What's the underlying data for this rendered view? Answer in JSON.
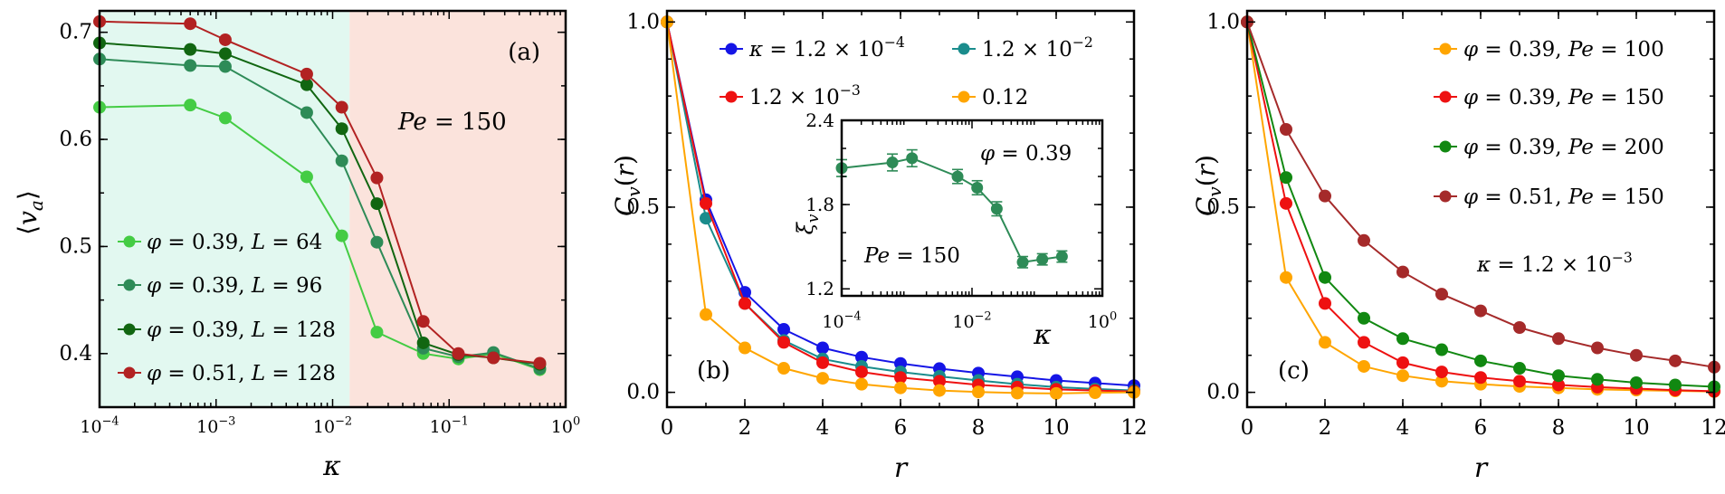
{
  "chart_data": [
    {
      "type": "line",
      "panel_label": "(a)",
      "annotation": "Pe = 150",
      "xlabel": "κ",
      "ylabel": "⟨v_a⟩",
      "xscale": "log",
      "xlim": [
        0.0001,
        1
      ],
      "ylim": [
        0.35,
        0.72
      ],
      "x_ticks": [
        "10⁻⁴",
        "10⁻³",
        "10⁻²",
        "10⁻¹",
        "10⁰"
      ],
      "y_ticks": [
        "0.4",
        "0.5",
        "0.6",
        "0.7"
      ],
      "shaded_regions": [
        {
          "x_from": 0.0001,
          "x_to": 0.014,
          "color": "#e2f8f0"
        },
        {
          "x_from": 0.014,
          "x_to": 1,
          "color": "#fbe3dc"
        }
      ],
      "legend_position": "lower-left",
      "series": [
        {
          "name": "φ = 0.39, L = 64",
          "color": "#44cc44",
          "x": [
            0.0001,
            0.0006,
            0.0012,
            0.006,
            0.012,
            0.024,
            0.06,
            0.12,
            0.24,
            0.6
          ],
          "y": [
            0.63,
            0.632,
            0.62,
            0.565,
            0.51,
            0.42,
            0.4,
            0.395,
            0.4,
            0.385
          ]
        },
        {
          "name": "φ = 0.39, L = 96",
          "color": "#2e8b57",
          "x": [
            0.0001,
            0.0006,
            0.0012,
            0.006,
            0.012,
            0.024,
            0.06,
            0.12,
            0.24,
            0.6
          ],
          "y": [
            0.675,
            0.669,
            0.668,
            0.625,
            0.58,
            0.504,
            0.405,
            0.397,
            0.401,
            0.386
          ]
        },
        {
          "name": "φ = 0.39, L = 128",
          "color": "#116611",
          "x": [
            0.0001,
            0.0006,
            0.0012,
            0.006,
            0.012,
            0.024,
            0.06,
            0.12,
            0.24,
            0.6
          ],
          "y": [
            0.69,
            0.684,
            0.68,
            0.651,
            0.61,
            0.54,
            0.41,
            0.399,
            0.396,
            0.39
          ]
        },
        {
          "name": "φ = 0.51, L = 128",
          "color": "#b22222",
          "x": [
            0.0001,
            0.0006,
            0.0012,
            0.006,
            0.012,
            0.024,
            0.06,
            0.12,
            0.24,
            0.6
          ],
          "y": [
            0.71,
            0.708,
            0.693,
            0.661,
            0.63,
            0.564,
            0.43,
            0.4,
            0.396,
            0.391
          ]
        }
      ]
    },
    {
      "type": "line",
      "panel_label": "(b)",
      "xlabel": "r",
      "ylabel": "C_v(r)",
      "xlim": [
        0,
        12
      ],
      "ylim": [
        -0.04,
        1.03
      ],
      "x_ticks": [
        "0",
        "2",
        "4",
        "6",
        "8",
        "10",
        "12"
      ],
      "y_ticks": [
        "0.0",
        "0.5",
        "1.0"
      ],
      "legend_position": "top",
      "series": [
        {
          "name": "κ = 1.2 × 10⁻⁴",
          "color": "#1515e6",
          "x": [
            0,
            1,
            2,
            3,
            4,
            5,
            6,
            7,
            8,
            9,
            10,
            11,
            12
          ],
          "y": [
            1.0,
            0.52,
            0.27,
            0.17,
            0.12,
            0.095,
            0.078,
            0.064,
            0.052,
            0.042,
            0.032,
            0.025,
            0.018
          ]
        },
        {
          "name": "1.2 × 10⁻²",
          "color": "#1a8c8c",
          "x": [
            0,
            1,
            2,
            3,
            4,
            5,
            6,
            7,
            8,
            9,
            10,
            11,
            12
          ],
          "y": [
            1.0,
            0.47,
            0.24,
            0.14,
            0.09,
            0.07,
            0.055,
            0.043,
            0.032,
            0.022,
            0.014,
            0.009,
            0.005
          ]
        },
        {
          "name": "1.2 × 10⁻³",
          "color": "#ee1111",
          "x": [
            0,
            1,
            2,
            3,
            4,
            5,
            6,
            7,
            8,
            9,
            10,
            11,
            12
          ],
          "y": [
            1.0,
            0.51,
            0.24,
            0.135,
            0.08,
            0.055,
            0.04,
            0.03,
            0.02,
            0.014,
            0.008,
            0.005,
            0.002
          ]
        },
        {
          "name": "0.12",
          "color": "#ffa500",
          "x": [
            0,
            1,
            2,
            3,
            4,
            5,
            6,
            7,
            8,
            9,
            10,
            11,
            12
          ],
          "y": [
            1.0,
            0.21,
            0.12,
            0.065,
            0.038,
            0.022,
            0.012,
            0.005,
            0.001,
            -0.002,
            -0.003,
            -0.001,
            0.0
          ]
        }
      ],
      "inset": {
        "type": "line",
        "annotations": [
          "φ = 0.39",
          "Pe = 150"
        ],
        "xlabel": "κ",
        "ylabel": "ξ_v",
        "xscale": "log",
        "xlim": [
          0.0001,
          1
        ],
        "ylim": [
          1.15,
          2.4
        ],
        "x_ticks": [
          "10⁻⁴",
          "10⁻²",
          "10⁰"
        ],
        "y_ticks": [
          "1.2",
          "1.8",
          "2.4"
        ],
        "series": [
          {
            "color": "#2e8b57",
            "x": [
              0.0001,
              0.0006,
              0.0012,
              0.006,
              0.012,
              0.024,
              0.06,
              0.12,
              0.24
            ],
            "y": [
              2.06,
              2.1,
              2.13,
              2.0,
              1.92,
              1.77,
              1.39,
              1.41,
              1.43
            ],
            "err": [
              0.06,
              0.06,
              0.06,
              0.05,
              0.05,
              0.05,
              0.04,
              0.04,
              0.04
            ]
          }
        ]
      }
    },
    {
      "type": "line",
      "panel_label": "(c)",
      "annotation": "κ = 1.2 × 10⁻³",
      "xlabel": "r",
      "ylabel": "C_v(r)",
      "xlim": [
        0,
        12
      ],
      "ylim": [
        -0.04,
        1.03
      ],
      "x_ticks": [
        "0",
        "2",
        "4",
        "6",
        "8",
        "10",
        "12"
      ],
      "y_ticks": [
        "0.0",
        "0.5",
        "1.0"
      ],
      "legend_position": "top-right",
      "series": [
        {
          "name": "φ = 0.39, Pe = 100",
          "color": "#ffa500",
          "x": [
            0,
            1,
            2,
            3,
            4,
            5,
            6,
            7,
            8,
            9,
            10,
            11,
            12
          ],
          "y": [
            1.0,
            0.31,
            0.135,
            0.07,
            0.045,
            0.03,
            0.022,
            0.016,
            0.012,
            0.008,
            0.006,
            0.004,
            0.002
          ]
        },
        {
          "name": "φ = 0.39, Pe = 150",
          "color": "#ee1111",
          "x": [
            0,
            1,
            2,
            3,
            4,
            5,
            6,
            7,
            8,
            9,
            10,
            11,
            12
          ],
          "y": [
            1.0,
            0.51,
            0.24,
            0.135,
            0.08,
            0.055,
            0.04,
            0.03,
            0.02,
            0.014,
            0.01,
            0.006,
            0.003
          ]
        },
        {
          "name": "φ = 0.39, Pe = 200",
          "color": "#118811",
          "x": [
            0,
            1,
            2,
            3,
            4,
            5,
            6,
            7,
            8,
            9,
            10,
            11,
            12
          ],
          "y": [
            1.0,
            0.58,
            0.31,
            0.2,
            0.145,
            0.115,
            0.085,
            0.065,
            0.045,
            0.035,
            0.026,
            0.02,
            0.015
          ]
        },
        {
          "name": "φ = 0.51, Pe = 150",
          "color": "#a52a2a",
          "x": [
            0,
            1,
            2,
            3,
            4,
            5,
            6,
            7,
            8,
            9,
            10,
            11,
            12
          ],
          "y": [
            1.0,
            0.71,
            0.53,
            0.41,
            0.325,
            0.265,
            0.22,
            0.175,
            0.145,
            0.12,
            0.1,
            0.085,
            0.068
          ]
        }
      ]
    }
  ]
}
